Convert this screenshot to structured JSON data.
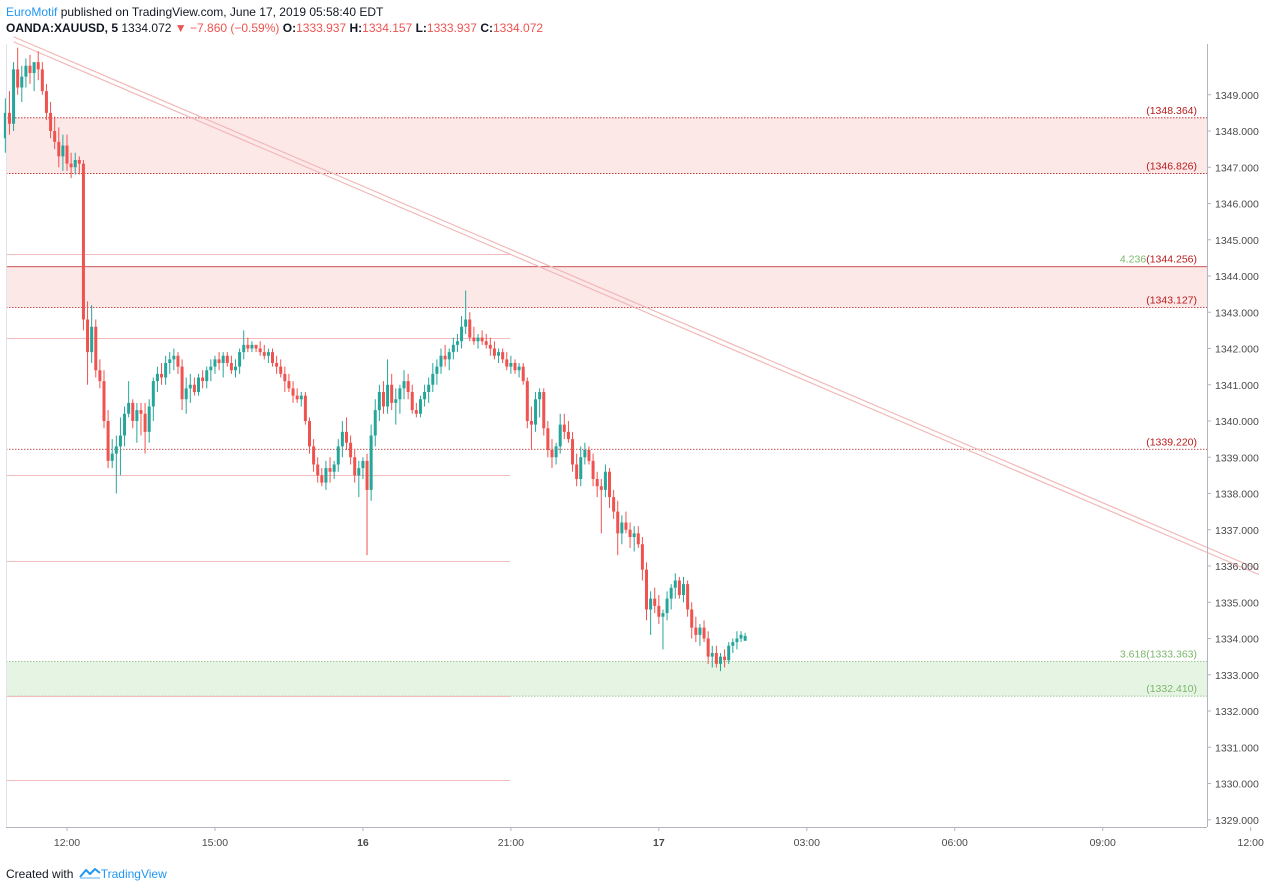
{
  "header": {
    "author": "EuroMotif",
    "published_text": "published on TradingView.com, June 17, 2019 05:58:40 EDT",
    "symbol": "OANDA:XAUUSD, 5",
    "last_price": "1334.072",
    "change": "−7.860 (−0.59%)",
    "open_label": "O:",
    "open_value": "1333.937",
    "high_label": "H:",
    "high_value": "1334.157",
    "low_label": "L:",
    "low_value": "1333.937",
    "close_label": "C:",
    "close_value": "1334.072"
  },
  "footer": {
    "created_with": "Created with",
    "brand": "TradingView"
  },
  "colors": {
    "up": "#26a69a",
    "down": "#ef5350",
    "resistance_zone": "#fde8e8",
    "support_zone": "#e6f4e4",
    "red_level": "#b71c1c",
    "green_level": "#7cb66a",
    "trendline": "#f2b8b8"
  },
  "chart_data": {
    "type": "candlestick",
    "symbol": "OANDA:XAUUSD",
    "interval": "5",
    "ylim": [
      1328.8,
      1350.4
    ],
    "y_ticks": [
      "1349.000",
      "1348.000",
      "1347.000",
      "1346.000",
      "1345.000",
      "1344.000",
      "1343.000",
      "1342.000",
      "1341.000",
      "1340.000",
      "1339.000",
      "1338.000",
      "1337.000",
      "1336.000",
      "1335.000",
      "1334.000",
      "1333.000",
      "1332.000",
      "1331.000",
      "1330.000",
      "1329.000"
    ],
    "x_ticks": [
      {
        "label": "12:00",
        "bar": 0
      },
      {
        "label": "15:00",
        "bar": 36
      },
      {
        "label": "16",
        "bar": 72
      },
      {
        "label": "21:00",
        "bar": 108
      },
      {
        "label": "17",
        "bar": 144
      },
      {
        "label": "03:00",
        "bar": 180
      },
      {
        "label": "06:00",
        "bar": 216
      },
      {
        "label": "09:00",
        "bar": 252
      },
      {
        "label": "12:00",
        "bar": 288
      }
    ],
    "bars_before_first_tick": 15,
    "zones": [
      {
        "top": 1348.364,
        "bottom": 1346.826,
        "kind": "resistance",
        "top_label": "(1348.364)",
        "bottom_label": "(1346.826)"
      },
      {
        "top": 1344.256,
        "bottom": 1343.127,
        "kind": "resistance",
        "top_label": "4.236(1344.256)",
        "bottom_label": "(1343.127)"
      },
      {
        "top": 1333.363,
        "bottom": 1332.41,
        "kind": "support",
        "top_label": "3.618(1333.363)",
        "bottom_label": "(1332.410)"
      }
    ],
    "level_lines": [
      {
        "value": 1339.22,
        "label": "(1339.220)"
      }
    ],
    "faint_levels": [
      1344.6,
      1342.3,
      1338.5,
      1336.15,
      1332.4,
      1330.1
    ],
    "trendline": {
      "from": [
        -13,
        1350.6
      ],
      "to": [
        290,
        1335.9
      ]
    },
    "ohlc": [
      [
        1347.8,
        1348.9,
        1347.4,
        1348.5
      ],
      [
        1348.5,
        1349.1,
        1347.9,
        1348.2
      ],
      [
        1348.2,
        1349.9,
        1348.0,
        1349.7
      ],
      [
        1349.7,
        1350.3,
        1349.0,
        1349.2
      ],
      [
        1349.2,
        1349.8,
        1348.8,
        1349.5
      ],
      [
        1349.5,
        1350.0,
        1349.2,
        1349.8
      ],
      [
        1349.8,
        1350.1,
        1349.3,
        1349.6
      ],
      [
        1349.6,
        1349.9,
        1349.1,
        1349.9
      ],
      [
        1349.9,
        1350.2,
        1349.4,
        1349.7
      ],
      [
        1349.7,
        1349.9,
        1349.0,
        1349.1
      ],
      [
        1349.1,
        1349.3,
        1348.3,
        1348.5
      ],
      [
        1348.5,
        1348.8,
        1347.8,
        1348.0
      ],
      [
        1348.0,
        1348.4,
        1347.5,
        1347.7
      ],
      [
        1347.7,
        1348.1,
        1347.0,
        1347.3
      ],
      [
        1347.3,
        1347.9,
        1346.9,
        1347.6
      ],
      [
        1347.6,
        1347.9,
        1346.9,
        1347.1
      ],
      [
        1347.1,
        1347.4,
        1346.7,
        1347.0
      ],
      [
        1347.0,
        1347.4,
        1346.8,
        1347.2
      ],
      [
        1347.2,
        1347.3,
        1346.8,
        1347.1
      ],
      [
        1347.1,
        1347.2,
        1342.5,
        1342.8
      ],
      [
        1342.8,
        1343.3,
        1341.0,
        1341.9
      ],
      [
        1341.9,
        1343.2,
        1341.6,
        1342.6
      ],
      [
        1342.6,
        1342.8,
        1341.2,
        1341.4
      ],
      [
        1341.4,
        1341.7,
        1340.9,
        1341.1
      ],
      [
        1341.1,
        1341.4,
        1339.8,
        1340.0
      ],
      [
        1340.0,
        1340.3,
        1338.7,
        1338.9
      ],
      [
        1338.9,
        1339.5,
        1338.7,
        1339.1
      ],
      [
        1339.1,
        1339.6,
        1338.0,
        1339.3
      ],
      [
        1339.3,
        1340.1,
        1338.5,
        1339.6
      ],
      [
        1339.6,
        1340.4,
        1339.3,
        1340.2
      ],
      [
        1340.2,
        1341.1,
        1340.1,
        1340.5
      ],
      [
        1340.5,
        1340.6,
        1339.8,
        1340.0
      ],
      [
        1340.0,
        1340.5,
        1339.4,
        1340.3
      ],
      [
        1340.3,
        1340.5,
        1339.6,
        1340.2
      ],
      [
        1340.2,
        1340.5,
        1339.1,
        1339.7
      ],
      [
        1339.7,
        1340.6,
        1339.4,
        1340.4
      ],
      [
        1340.4,
        1341.2,
        1340.0,
        1341.1
      ],
      [
        1341.1,
        1341.5,
        1340.8,
        1341.3
      ],
      [
        1341.3,
        1341.6,
        1341.0,
        1341.2
      ],
      [
        1341.2,
        1341.8,
        1341.0,
        1341.6
      ],
      [
        1341.6,
        1341.9,
        1341.3,
        1341.7
      ],
      [
        1341.7,
        1342.0,
        1341.4,
        1341.8
      ],
      [
        1341.8,
        1341.9,
        1341.3,
        1341.5
      ],
      [
        1341.5,
        1341.7,
        1340.3,
        1340.6
      ],
      [
        1340.6,
        1341.2,
        1340.2,
        1340.9
      ],
      [
        1340.9,
        1341.3,
        1340.5,
        1341.0
      ],
      [
        1341.0,
        1341.2,
        1340.7,
        1340.8
      ],
      [
        1340.8,
        1341.3,
        1340.7,
        1341.2
      ],
      [
        1341.2,
        1341.4,
        1340.9,
        1341.1
      ],
      [
        1341.1,
        1341.5,
        1340.9,
        1341.4
      ],
      [
        1341.4,
        1341.7,
        1341.1,
        1341.5
      ],
      [
        1341.5,
        1341.8,
        1341.3,
        1341.7
      ],
      [
        1341.7,
        1341.9,
        1341.4,
        1341.6
      ],
      [
        1341.6,
        1341.9,
        1341.2,
        1341.8
      ],
      [
        1341.8,
        1341.9,
        1341.5,
        1341.6
      ],
      [
        1341.6,
        1341.8,
        1341.3,
        1341.4
      ],
      [
        1341.4,
        1341.7,
        1341.2,
        1341.5
      ],
      [
        1341.5,
        1342.0,
        1341.3,
        1341.9
      ],
      [
        1341.9,
        1342.5,
        1341.7,
        1342.1
      ],
      [
        1342.1,
        1342.3,
        1341.9,
        1342.0
      ],
      [
        1342.0,
        1342.2,
        1341.9,
        1342.1
      ],
      [
        1342.1,
        1342.1,
        1341.9,
        1342.0
      ],
      [
        1342.0,
        1342.2,
        1341.8,
        1341.9
      ],
      [
        1341.9,
        1342.1,
        1341.7,
        1341.8
      ],
      [
        1341.8,
        1342.0,
        1341.6,
        1341.9
      ],
      [
        1341.9,
        1342.0,
        1341.5,
        1341.6
      ],
      [
        1341.6,
        1341.8,
        1341.3,
        1341.5
      ],
      [
        1341.5,
        1341.7,
        1341.2,
        1341.3
      ],
      [
        1341.3,
        1341.5,
        1340.8,
        1341.1
      ],
      [
        1341.1,
        1341.3,
        1340.8,
        1340.9
      ],
      [
        1340.9,
        1341.1,
        1340.5,
        1340.7
      ],
      [
        1340.7,
        1340.9,
        1340.5,
        1340.6
      ],
      [
        1340.6,
        1340.8,
        1340.4,
        1340.7
      ],
      [
        1340.7,
        1340.8,
        1339.9,
        1340.0
      ],
      [
        1340.0,
        1340.1,
        1339.1,
        1339.3
      ],
      [
        1339.3,
        1339.5,
        1338.6,
        1338.8
      ],
      [
        1338.8,
        1339.0,
        1338.3,
        1338.5
      ],
      [
        1338.5,
        1338.7,
        1338.2,
        1338.3
      ],
      [
        1338.3,
        1338.9,
        1338.1,
        1338.7
      ],
      [
        1338.7,
        1339.0,
        1338.3,
        1338.6
      ],
      [
        1338.6,
        1338.9,
        1338.4,
        1338.8
      ],
      [
        1338.8,
        1339.5,
        1338.6,
        1339.3
      ],
      [
        1339.3,
        1340.0,
        1339.0,
        1339.7
      ],
      [
        1339.7,
        1340.1,
        1339.2,
        1339.4
      ],
      [
        1339.4,
        1339.6,
        1338.8,
        1339.0
      ],
      [
        1339.0,
        1339.2,
        1338.3,
        1338.5
      ],
      [
        1338.5,
        1338.9,
        1337.9,
        1338.7
      ],
      [
        1338.7,
        1339.0,
        1338.4,
        1338.9
      ],
      [
        1338.9,
        1339.1,
        1336.3,
        1338.1
      ],
      [
        1338.1,
        1339.9,
        1337.8,
        1339.6
      ],
      [
        1339.6,
        1340.6,
        1339.3,
        1340.3
      ],
      [
        1340.3,
        1341.0,
        1340.0,
        1340.8
      ],
      [
        1340.8,
        1341.1,
        1340.2,
        1340.4
      ],
      [
        1340.4,
        1341.7,
        1340.2,
        1341.0
      ],
      [
        1341.0,
        1341.3,
        1340.3,
        1340.5
      ],
      [
        1340.5,
        1340.9,
        1339.9,
        1340.6
      ],
      [
        1340.6,
        1341.0,
        1340.2,
        1340.9
      ],
      [
        1340.9,
        1341.4,
        1340.6,
        1341.1
      ],
      [
        1341.1,
        1341.3,
        1340.6,
        1340.8
      ],
      [
        1340.8,
        1341.0,
        1340.2,
        1340.3
      ],
      [
        1340.3,
        1340.5,
        1340.1,
        1340.2
      ],
      [
        1340.2,
        1340.7,
        1340.1,
        1340.6
      ],
      [
        1340.6,
        1341.0,
        1340.4,
        1340.8
      ],
      [
        1340.8,
        1341.2,
        1340.5,
        1341.0
      ],
      [
        1341.0,
        1341.6,
        1340.8,
        1341.3
      ],
      [
        1341.3,
        1341.7,
        1341.0,
        1341.5
      ],
      [
        1341.5,
        1342.0,
        1341.3,
        1341.8
      ],
      [
        1341.8,
        1342.1,
        1341.5,
        1341.7
      ],
      [
        1341.7,
        1342.0,
        1341.4,
        1341.9
      ],
      [
        1341.9,
        1342.3,
        1341.7,
        1342.1
      ],
      [
        1342.1,
        1342.4,
        1341.9,
        1342.2
      ],
      [
        1342.2,
        1342.9,
        1342.0,
        1342.6
      ],
      [
        1342.6,
        1343.6,
        1342.4,
        1342.8
      ],
      [
        1342.8,
        1343.0,
        1342.2,
        1342.3
      ],
      [
        1342.3,
        1342.6,
        1342.1,
        1342.2
      ],
      [
        1342.2,
        1342.4,
        1342.0,
        1342.3
      ],
      [
        1342.3,
        1342.5,
        1342.1,
        1342.2
      ],
      [
        1342.2,
        1342.4,
        1342.0,
        1342.1
      ],
      [
        1342.1,
        1342.3,
        1341.8,
        1342.0
      ],
      [
        1342.0,
        1342.2,
        1341.7,
        1341.8
      ],
      [
        1341.8,
        1342.0,
        1341.6,
        1341.9
      ],
      [
        1341.9,
        1342.0,
        1341.6,
        1341.7
      ],
      [
        1341.7,
        1341.9,
        1341.4,
        1341.5
      ],
      [
        1341.5,
        1341.8,
        1341.3,
        1341.6
      ],
      [
        1341.6,
        1341.7,
        1341.3,
        1341.4
      ],
      [
        1341.4,
        1341.6,
        1341.2,
        1341.5
      ],
      [
        1341.5,
        1341.6,
        1341.0,
        1341.1
      ],
      [
        1341.1,
        1341.2,
        1339.8,
        1340.0
      ],
      [
        1340.0,
        1340.4,
        1339.2,
        1339.9
      ],
      [
        1339.9,
        1340.8,
        1339.7,
        1340.6
      ],
      [
        1340.6,
        1340.9,
        1340.1,
        1340.8
      ],
      [
        1340.8,
        1340.9,
        1339.6,
        1339.8
      ],
      [
        1339.8,
        1340.0,
        1339.0,
        1339.2
      ],
      [
        1339.2,
        1339.5,
        1338.7,
        1339.0
      ],
      [
        1339.0,
        1339.4,
        1338.8,
        1339.3
      ],
      [
        1339.3,
        1340.2,
        1339.1,
        1339.9
      ],
      [
        1339.9,
        1340.2,
        1339.5,
        1339.7
      ],
      [
        1339.7,
        1340.0,
        1339.4,
        1339.5
      ],
      [
        1339.5,
        1339.7,
        1338.6,
        1338.8
      ],
      [
        1338.8,
        1339.1,
        1338.2,
        1338.4
      ],
      [
        1338.4,
        1339.3,
        1338.2,
        1339.0
      ],
      [
        1339.0,
        1339.4,
        1338.8,
        1339.2
      ],
      [
        1339.2,
        1339.3,
        1338.8,
        1338.9
      ],
      [
        1338.9,
        1339.1,
        1338.2,
        1338.4
      ],
      [
        1338.4,
        1338.6,
        1337.9,
        1338.2
      ],
      [
        1338.2,
        1338.4,
        1336.9,
        1338.1
      ],
      [
        1338.1,
        1338.8,
        1337.9,
        1338.6
      ],
      [
        1338.6,
        1338.7,
        1337.6,
        1337.9
      ],
      [
        1337.9,
        1338.1,
        1337.3,
        1337.5
      ],
      [
        1337.5,
        1337.8,
        1336.3,
        1336.9
      ],
      [
        1336.9,
        1337.4,
        1336.6,
        1337.2
      ],
      [
        1337.2,
        1337.5,
        1336.9,
        1337.0
      ],
      [
        1337.0,
        1337.2,
        1336.5,
        1336.8
      ],
      [
        1336.8,
        1337.1,
        1336.4,
        1336.9
      ],
      [
        1336.9,
        1337.1,
        1336.5,
        1336.6
      ],
      [
        1336.6,
        1336.8,
        1335.6,
        1335.9
      ],
      [
        1335.9,
        1336.1,
        1334.5,
        1334.8
      ],
      [
        1334.8,
        1335.3,
        1334.1,
        1335.1
      ],
      [
        1335.1,
        1335.4,
        1334.7,
        1334.9
      ],
      [
        1334.9,
        1335.2,
        1334.4,
        1334.6
      ],
      [
        1334.6,
        1334.8,
        1333.7,
        1334.7
      ],
      [
        1334.7,
        1335.3,
        1334.5,
        1335.1
      ],
      [
        1335.1,
        1335.5,
        1334.8,
        1335.4
      ],
      [
        1335.4,
        1335.8,
        1335.1,
        1335.6
      ],
      [
        1335.6,
        1335.7,
        1335.1,
        1335.2
      ],
      [
        1335.2,
        1335.7,
        1335.0,
        1335.5
      ],
      [
        1335.5,
        1335.6,
        1334.6,
        1334.8
      ],
      [
        1334.8,
        1335.0,
        1334.0,
        1334.3
      ],
      [
        1334.3,
        1334.6,
        1333.9,
        1334.1
      ],
      [
        1334.1,
        1334.4,
        1333.8,
        1334.3
      ],
      [
        1334.3,
        1334.5,
        1333.9,
        1334.0
      ],
      [
        1334.0,
        1334.2,
        1333.3,
        1333.5
      ],
      [
        1333.5,
        1333.8,
        1333.2,
        1333.6
      ],
      [
        1333.6,
        1333.8,
        1333.2,
        1333.3
      ],
      [
        1333.3,
        1333.6,
        1333.1,
        1333.5
      ],
      [
        1333.5,
        1333.7,
        1333.2,
        1333.4
      ],
      [
        1333.4,
        1333.9,
        1333.3,
        1333.8
      ],
      [
        1333.8,
        1334.0,
        1333.6,
        1333.9
      ],
      [
        1333.9,
        1334.2,
        1333.7,
        1334.0
      ],
      [
        1334.0,
        1334.2,
        1333.9,
        1334.1
      ],
      [
        1333.937,
        1334.157,
        1333.937,
        1334.072
      ]
    ]
  }
}
